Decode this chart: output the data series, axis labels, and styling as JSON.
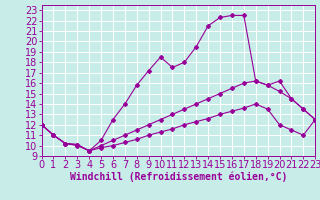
{
  "xlabel": "Windchill (Refroidissement éolien,°C)",
  "bg_color": "#c8ece8",
  "line_color": "#990099",
  "grid_color": "#ffffff",
  "xlim": [
    0,
    23
  ],
  "ylim": [
    9,
    23.5
  ],
  "xticks": [
    0,
    1,
    2,
    3,
    4,
    5,
    6,
    7,
    8,
    9,
    10,
    11,
    12,
    13,
    14,
    15,
    16,
    17,
    18,
    19,
    20,
    21,
    22,
    23
  ],
  "yticks": [
    9,
    10,
    11,
    12,
    13,
    14,
    15,
    16,
    17,
    18,
    19,
    20,
    21,
    22,
    23
  ],
  "curve_upper_x": [
    0,
    1,
    2,
    3,
    4,
    5,
    6,
    7,
    8,
    9,
    10,
    11,
    12,
    13,
    14,
    15,
    16,
    17,
    18,
    19,
    20,
    21,
    22,
    23
  ],
  "curve_upper_y": [
    12.0,
    11.0,
    10.2,
    10.1,
    9.5,
    10.5,
    12.5,
    14.0,
    15.8,
    17.2,
    18.5,
    17.5,
    18.0,
    19.5,
    21.5,
    22.3,
    22.5,
    22.5,
    16.2,
    15.8,
    15.2,
    14.5,
    13.5,
    12.5
  ],
  "curve_mid_x": [
    0,
    1,
    2,
    3,
    4,
    5,
    6,
    7,
    8,
    9,
    10,
    11,
    12,
    13,
    14,
    15,
    16,
    17,
    18,
    19,
    20,
    21,
    22,
    23
  ],
  "curve_mid_y": [
    12.0,
    11.0,
    10.2,
    10.1,
    9.5,
    10.0,
    10.5,
    11.0,
    11.5,
    12.0,
    12.5,
    13.0,
    13.5,
    14.0,
    14.5,
    15.0,
    15.5,
    16.0,
    16.2,
    15.8,
    16.2,
    14.5,
    13.5,
    12.5
  ],
  "curve_low_x": [
    0,
    1,
    2,
    3,
    4,
    5,
    6,
    7,
    8,
    9,
    10,
    11,
    12,
    13,
    14,
    15,
    16,
    17,
    18,
    19,
    20,
    21,
    22,
    23
  ],
  "curve_low_y": [
    12.0,
    11.0,
    10.2,
    10.0,
    9.5,
    9.8,
    10.0,
    10.3,
    10.6,
    11.0,
    11.3,
    11.6,
    12.0,
    12.3,
    12.6,
    13.0,
    13.3,
    13.6,
    14.0,
    13.5,
    12.0,
    11.5,
    11.0,
    12.5
  ],
  "font_size": 7,
  "marker": "D",
  "marker_size": 2.0,
  "linewidth": 0.8
}
